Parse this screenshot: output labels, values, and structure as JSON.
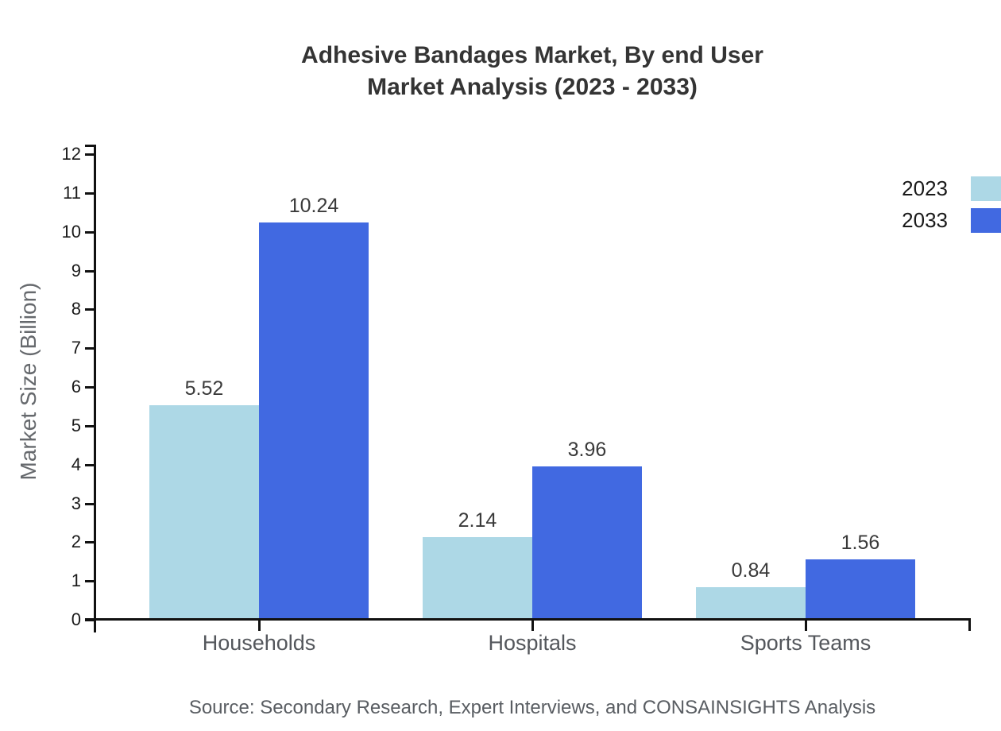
{
  "chart_data": {
    "type": "bar",
    "title_line1": "Adhesive Bandages Market, By end User",
    "title_line2": "Market Analysis (2023 - 2033)",
    "categories": [
      "Households",
      "Hospitals",
      "Sports Teams"
    ],
    "series": [
      {
        "name": "2023",
        "color": "#ADD8E6",
        "values": [
          5.52,
          2.14,
          0.84
        ]
      },
      {
        "name": "2033",
        "color": "#4169E1",
        "values": [
          10.24,
          3.96,
          1.56
        ]
      }
    ],
    "xlabel": "",
    "ylabel": "Market Size (Billion)",
    "ylim": [
      0,
      12
    ],
    "ytick_step": 1,
    "grid": false,
    "legend_position": "top-right",
    "value_labels": true,
    "axis_color": "#111111",
    "tick_label_color": "#1a1a1a",
    "value_label_color": "#3a3a3a",
    "category_label_color": "#54575c",
    "source": "Source: Secondary Research, Expert Interviews, and CONSAINSIGHTS Analysis"
  }
}
